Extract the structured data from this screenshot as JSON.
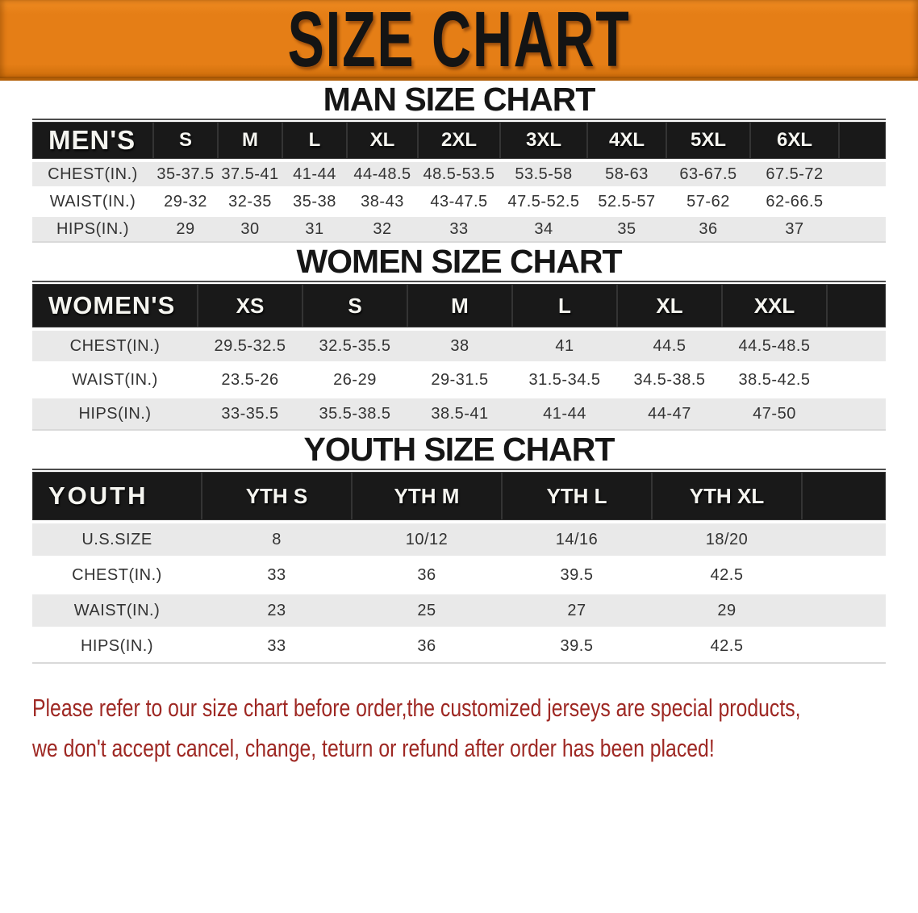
{
  "banner": {
    "title": "SIZE CHART"
  },
  "sections": [
    {
      "id": "men",
      "heading": "MAN SIZE CHART",
      "table": {
        "header_label": "MEN'S",
        "columns": [
          "S",
          "M",
          "L",
          "XL",
          "2XL",
          "3XL",
          "4XL",
          "5XL",
          "6XL"
        ],
        "rows": [
          {
            "label": "CHEST(IN.)",
            "values": [
              "35-37.5",
              "37.5-41",
              "41-44",
              "44-48.5",
              "48.5-53.5",
              "53.5-58",
              "58-63",
              "63-67.5",
              "67.5-72"
            ]
          },
          {
            "label": "WAIST(IN.)",
            "values": [
              "29-32",
              "32-35",
              "35-38",
              "38-43",
              "43-47.5",
              "47.5-52.5",
              "52.5-57",
              "57-62",
              "62-66.5"
            ]
          },
          {
            "label": "HIPS(IN.)",
            "values": [
              "29",
              "30",
              "31",
              "32",
              "33",
              "34",
              "35",
              "36",
              "37"
            ]
          }
        ]
      }
    },
    {
      "id": "women",
      "heading": "WOMEN SIZE CHART",
      "table": {
        "header_label": "WOMEN'S",
        "columns": [
          "XS",
          "S",
          "M",
          "L",
          "XL",
          "XXL"
        ],
        "rows": [
          {
            "label": "CHEST(IN.)",
            "values": [
              "29.5-32.5",
              "32.5-35.5",
              "38",
              "41",
              "44.5",
              "44.5-48.5"
            ]
          },
          {
            "label": "WAIST(IN.)",
            "values": [
              "23.5-26",
              "26-29",
              "29-31.5",
              "31.5-34.5",
              "34.5-38.5",
              "38.5-42.5"
            ]
          },
          {
            "label": "HIPS(IN.)",
            "values": [
              "33-35.5",
              "35.5-38.5",
              "38.5-41",
              "41-44",
              "44-47",
              "47-50"
            ]
          }
        ]
      }
    },
    {
      "id": "youth",
      "heading": "YOUTH SIZE CHART",
      "table": {
        "header_label": "YOUTH",
        "columns": [
          "YTH S",
          "YTH M",
          "YTH L",
          "YTH XL"
        ],
        "rows": [
          {
            "label": "U.S.SIZE",
            "values": [
              "8",
              "10/12",
              "14/16",
              "18/20"
            ]
          },
          {
            "label": "CHEST(IN.)",
            "values": [
              "33",
              "36",
              "39.5",
              "42.5"
            ]
          },
          {
            "label": "WAIST(IN.)",
            "values": [
              "23",
              "25",
              "27",
              "29"
            ]
          },
          {
            "label": "HIPS(IN.)",
            "values": [
              "33",
              "36",
              "39.5",
              "42.5"
            ]
          }
        ]
      }
    }
  ],
  "disclaimer": {
    "line1": "Please refer to our size chart before order,the customized jerseys are special products,",
    "line2": "we don't accept cancel, change, teturn or refund after order has been placed!"
  },
  "colors": {
    "banner_orange": "#e57e16",
    "header_bar_black": "#191919",
    "row_grey": "#e9e9e9",
    "disclaimer_red": "#9e2823"
  }
}
